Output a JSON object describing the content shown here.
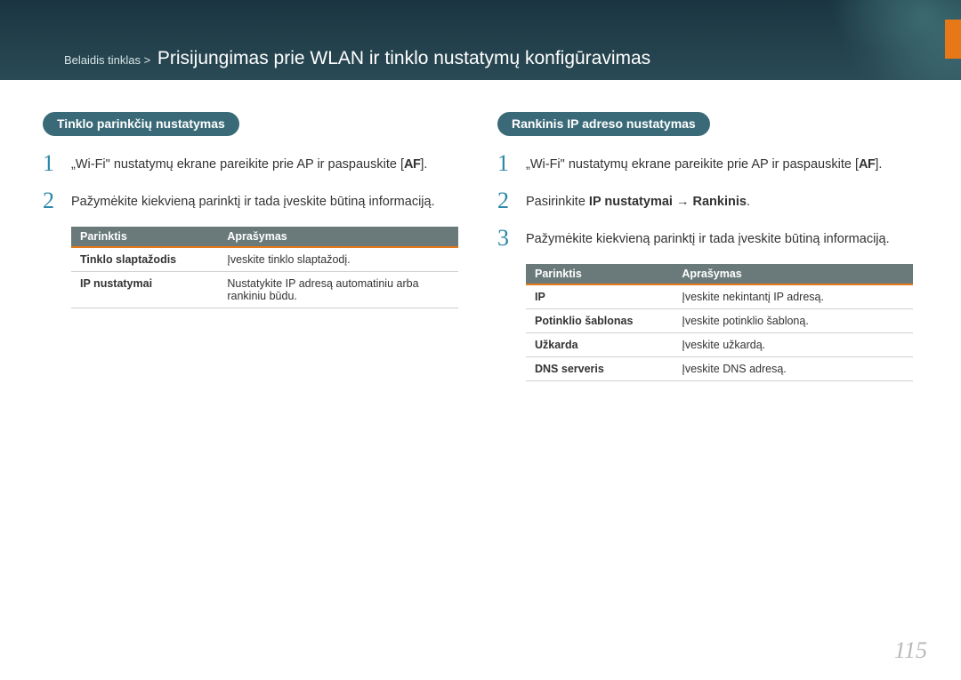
{
  "header": {
    "breadcrumb_prefix": "Belaidis tinklas >",
    "title": "Prisijungimas prie WLAN ir tinklo nustatymų konfigūravimas"
  },
  "left": {
    "heading": "Tinklo parinkčių nustatymas",
    "steps": [
      {
        "n": "1",
        "text": "„Wi-Fi\" nustatymų ekrane pareikite prie AP ir paspauskite [",
        "suffix": "]."
      },
      {
        "n": "2",
        "text": "Pažymėkite kiekvieną parinktį ir tada įveskite būtiną informaciją."
      }
    ],
    "table": {
      "columns": [
        "Parinktis",
        "Aprašymas"
      ],
      "rows": [
        [
          "Tinklo slaptažodis",
          "Įveskite tinklo slaptažodį."
        ],
        [
          "IP nustatymai",
          "Nustatykite IP adresą automatiniu arba rankiniu būdu."
        ]
      ]
    }
  },
  "right": {
    "heading": "Rankinis IP adreso nustatymas",
    "steps": [
      {
        "n": "1",
        "text": "„Wi-Fi\" nustatymų ekrane pareikite prie AP ir paspauskite [",
        "suffix": "]."
      },
      {
        "n": "2",
        "prefix": "Pasirinkite ",
        "bold1": "IP nustatymai",
        "mid": " → ",
        "bold2": "Rankinis",
        "suffix": "."
      },
      {
        "n": "3",
        "text": "Pažymėkite kiekvieną parinktį ir tada įveskite būtiną informaciją."
      }
    ],
    "table": {
      "columns": [
        "Parinktis",
        "Aprašymas"
      ],
      "rows": [
        [
          "IP",
          "Įveskite nekintantį IP adresą."
        ],
        [
          "Potinklio šablonas",
          "Įveskite potinklio šabloną."
        ],
        [
          "Užkarda",
          "Įveskite užkardą."
        ],
        [
          "DNS serveris",
          "Įveskite DNS adresą."
        ]
      ]
    }
  },
  "page_number": "115",
  "af_label": "AF"
}
